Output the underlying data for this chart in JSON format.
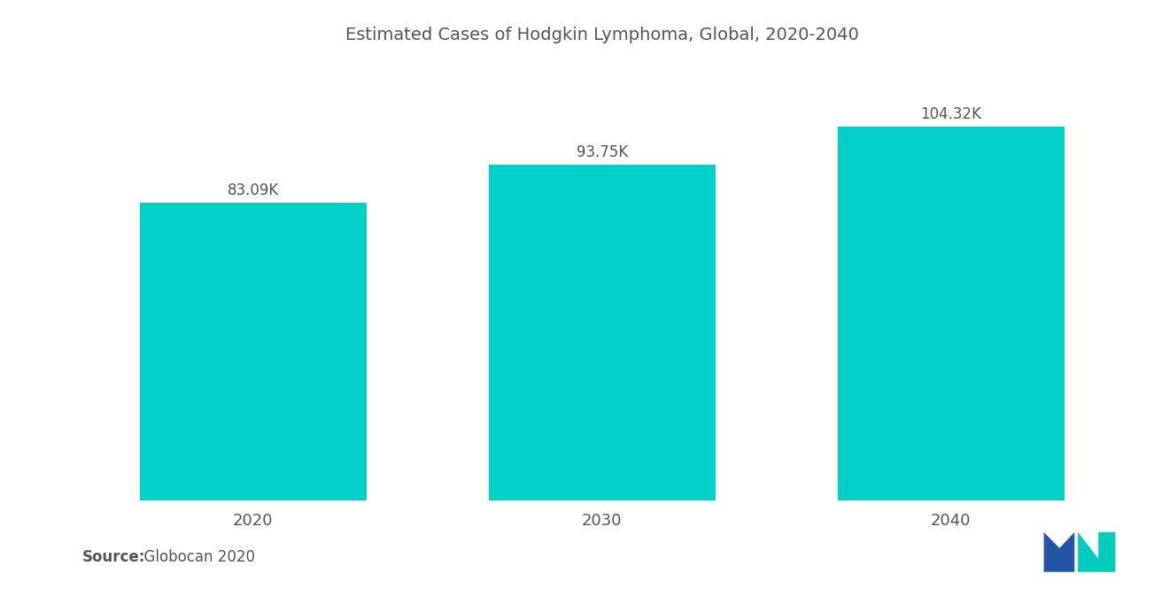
{
  "title": "Estimated Cases of Hodgkin Lymphoma, Global, 2020-2040",
  "categories": [
    "2020",
    "2030",
    "2040"
  ],
  "values": [
    83090,
    93750,
    104320
  ],
  "labels": [
    "83.09K",
    "93.75K",
    "104.32K"
  ],
  "bar_color": "#00D0C8",
  "background_color": "#ffffff",
  "source_bold": "Source:",
  "source_rest": "  Globocan 2020",
  "ylim": [
    0,
    120000
  ],
  "bar_width": 0.65,
  "title_fontsize": 14,
  "label_fontsize": 12,
  "tick_fontsize": 13,
  "source_fontsize": 12,
  "text_color": "#555555"
}
